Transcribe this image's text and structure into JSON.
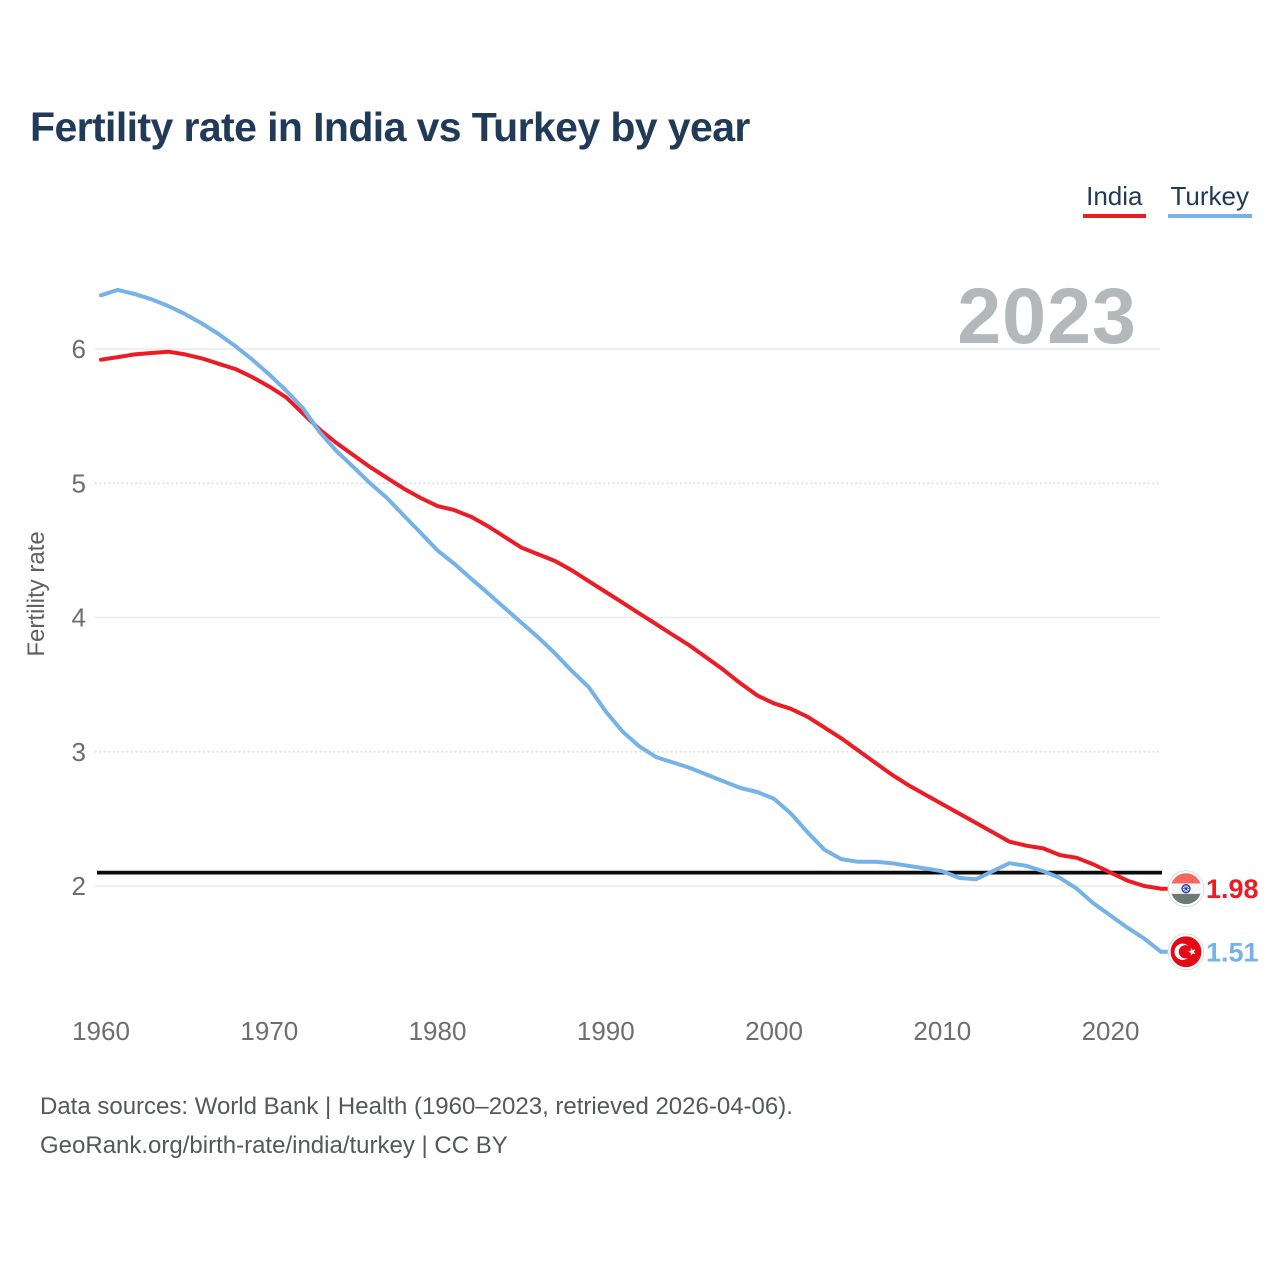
{
  "header": {
    "title": "Fertility rate in India vs Turkey by year"
  },
  "legend": {
    "items": [
      {
        "label": "India",
        "color": "#ec1c24"
      },
      {
        "label": "Turkey",
        "color": "#74b2e8"
      }
    ]
  },
  "watermark": {
    "text": "2023"
  },
  "chart_data": {
    "type": "line",
    "title": "Fertility rate in India vs Turkey by year",
    "xlabel": "",
    "ylabel": "Fertility rate",
    "grid": true,
    "legend_position": "top-right",
    "x_axis": {
      "ticks": [
        1960,
        1970,
        1980,
        1990,
        2000,
        2010,
        2020
      ],
      "range": [
        1960,
        2023
      ]
    },
    "y_axis": {
      "ticks": [
        2,
        3,
        4,
        5,
        6
      ],
      "dotted_ticks": [
        3,
        5
      ],
      "range": [
        1.4,
        6.6
      ]
    },
    "reference_line": {
      "value": 2.1,
      "color": "#0b0b0b"
    },
    "years": [
      1960,
      1961,
      1962,
      1963,
      1964,
      1965,
      1966,
      1967,
      1968,
      1969,
      1970,
      1971,
      1972,
      1973,
      1974,
      1975,
      1976,
      1977,
      1978,
      1979,
      1980,
      1981,
      1982,
      1983,
      1984,
      1985,
      1986,
      1987,
      1988,
      1989,
      1990,
      1991,
      1992,
      1993,
      1994,
      1995,
      1996,
      1997,
      1998,
      1999,
      2000,
      2001,
      2002,
      2003,
      2004,
      2005,
      2006,
      2007,
      2008,
      2009,
      2010,
      2011,
      2012,
      2013,
      2014,
      2015,
      2016,
      2017,
      2018,
      2019,
      2020,
      2021,
      2022,
      2023
    ],
    "series": [
      {
        "name": "India",
        "color": "#ec1c24",
        "values": [
          5.92,
          5.94,
          5.96,
          5.97,
          5.98,
          5.96,
          5.93,
          5.89,
          5.85,
          5.79,
          5.72,
          5.64,
          5.52,
          5.4,
          5.3,
          5.21,
          5.12,
          5.04,
          4.96,
          4.89,
          4.83,
          4.8,
          4.75,
          4.68,
          4.6,
          4.52,
          4.47,
          4.42,
          4.35,
          4.27,
          4.19,
          4.11,
          4.03,
          3.95,
          3.87,
          3.79,
          3.7,
          3.61,
          3.51,
          3.42,
          3.36,
          3.32,
          3.26,
          3.18,
          3.1,
          3.01,
          2.92,
          2.83,
          2.75,
          2.68,
          2.61,
          2.54,
          2.47,
          2.4,
          2.33,
          2.3,
          2.28,
          2.23,
          2.21,
          2.16,
          2.1,
          2.04,
          2.0,
          1.98
        ],
        "end_label": {
          "value": "1.98",
          "icon": "india-flag-icon"
        }
      },
      {
        "name": "Turkey",
        "color": "#74b2e8",
        "values": [
          6.4,
          6.44,
          6.41,
          6.37,
          6.32,
          6.26,
          6.19,
          6.11,
          6.02,
          5.92,
          5.81,
          5.69,
          5.56,
          5.38,
          5.24,
          5.12,
          5.0,
          4.89,
          4.76,
          4.63,
          4.5,
          4.4,
          4.29,
          4.18,
          4.07,
          3.96,
          3.85,
          3.73,
          3.6,
          3.48,
          3.3,
          3.15,
          3.04,
          2.96,
          2.92,
          2.88,
          2.83,
          2.78,
          2.73,
          2.7,
          2.65,
          2.54,
          2.4,
          2.27,
          2.2,
          2.18,
          2.18,
          2.17,
          2.15,
          2.13,
          2.11,
          2.06,
          2.05,
          2.11,
          2.17,
          2.15,
          2.11,
          2.06,
          1.98,
          1.87,
          1.78,
          1.69,
          1.61,
          1.51
        ],
        "end_label": {
          "value": "1.51",
          "icon": "turkey-flag-icon"
        }
      }
    ]
  },
  "footer": {
    "line1": "Data sources: World Bank | Health (1960–2023, retrieved 2026-04-06).",
    "line2": "GeoRank.org/birth-rate/india/turkey | CC BY"
  },
  "colors": {
    "title": "#203a57",
    "axis_text": "#6e6e6e",
    "axis_title_text": "#606060",
    "watermark": "#b5b8bb",
    "grid": "#eaeaea",
    "grid_dotted": "#d8d8d8",
    "india": "#ec1c24",
    "turkey": "#74b2e8",
    "reference": "#0b0b0b",
    "turkey_flag_red": "#e30a17",
    "india_flag_saffron": "#f3695c",
    "india_flag_white": "#f4f5f4",
    "india_flag_green": "#6d7a74",
    "chakra_navy": "#303f9f"
  }
}
